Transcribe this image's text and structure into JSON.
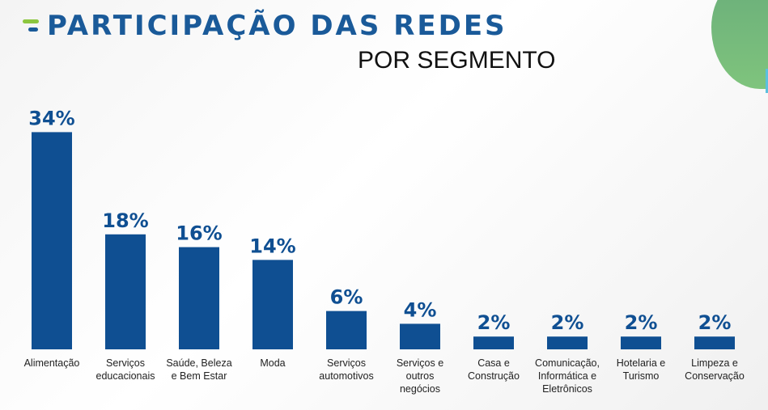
{
  "header": {
    "title": "PARTICIPAÇÃO DAS REDES",
    "subtitle": "POR SEGMENTO"
  },
  "colors": {
    "bar": "#0f4f92",
    "label": "#0f4f92",
    "accent_green": "#8cc63f"
  },
  "chart_data": {
    "type": "bar",
    "categories": [
      "Alimentação",
      "Serviços educacionais",
      "Saúde, Beleza e Bem Estar",
      "Moda",
      "Serviços automotivos",
      "Serviços e outros negócios",
      "Casa e Construção",
      "Comunicação, Informática e Eletrônicos",
      "Hotelaria e Turismo",
      "Limpeza e Conservação"
    ],
    "category_lines": [
      [
        "Alimentação"
      ],
      [
        "Serviços",
        "educacionais"
      ],
      [
        "Saúde, Beleza",
        "e Bem Estar"
      ],
      [
        "Moda"
      ],
      [
        "Serviços",
        "automotivos"
      ],
      [
        "Serviços e",
        "outros",
        "negócios"
      ],
      [
        "Casa e",
        "Construção"
      ],
      [
        "Comunicação,",
        "Informática e",
        "Eletrônicos"
      ],
      [
        "Hotelaria e",
        "Turismo"
      ],
      [
        "Limpeza e",
        "Conservação"
      ]
    ],
    "values": [
      34,
      18,
      16,
      14,
      6,
      4,
      2,
      2,
      2,
      2
    ],
    "data_labels": [
      "34%",
      "18%",
      "16%",
      "14%",
      "6%",
      "4%",
      "2%",
      "2%",
      "2%",
      "2%"
    ],
    "title": "PARTICIPAÇÃO DAS REDES",
    "subtitle": "POR SEGMENTO",
    "xlabel": "",
    "ylabel": "",
    "grid": false
  }
}
